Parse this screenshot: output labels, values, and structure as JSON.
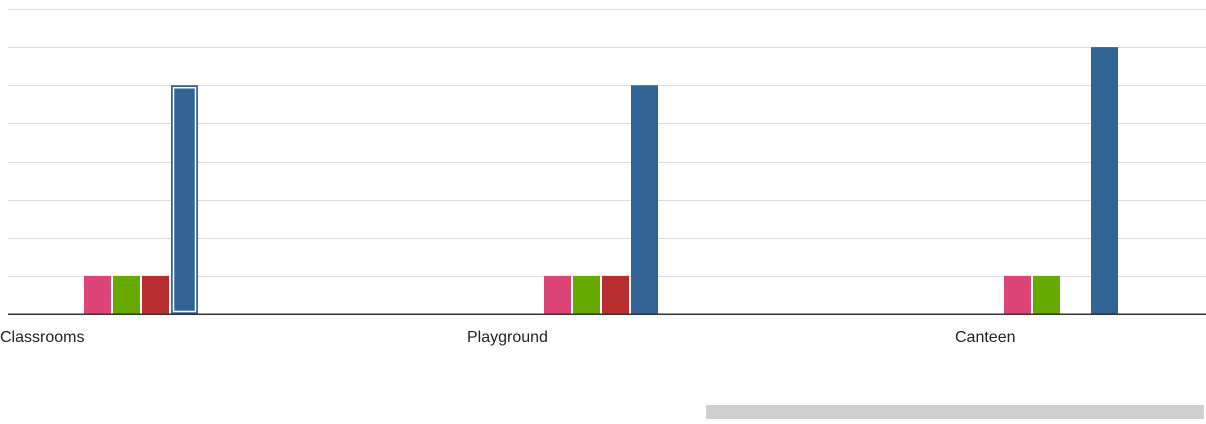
{
  "chart_data": {
    "type": "bar",
    "title": "",
    "xlabel": "",
    "ylabel": "",
    "categories": [
      "Classrooms",
      "Playground",
      "Canteen"
    ],
    "ylim": [
      0,
      8
    ],
    "grid": true,
    "series": [
      {
        "color": "#dd4477",
        "values": [
          1,
          1,
          1
        ]
      },
      {
        "color": "#66aa00",
        "values": [
          1,
          1,
          1
        ]
      },
      {
        "color": "#b82e2e",
        "values": [
          1,
          1,
          0
        ]
      },
      {
        "color": "#316395",
        "values": [
          6,
          6,
          7
        ]
      }
    ],
    "selected": {
      "series": 3,
      "category": 0
    }
  }
}
